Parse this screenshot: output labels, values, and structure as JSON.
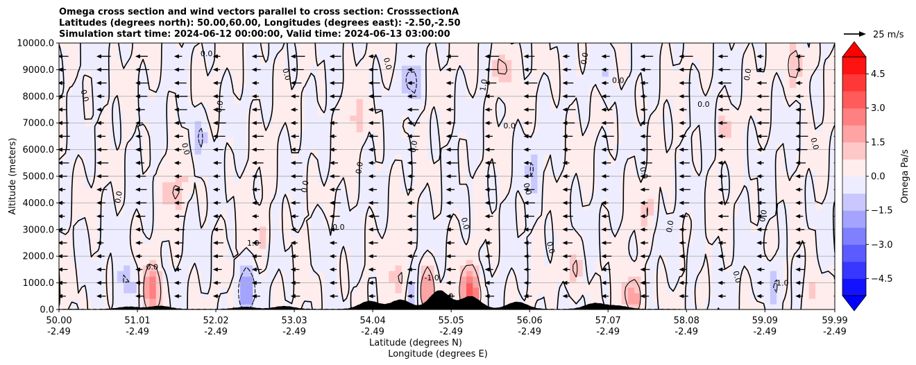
{
  "chart_data": {
    "type": "cross-section contour",
    "title_lines": [
      "Omega cross section and wind vectors parallel to cross section: CrosssectionA",
      "Latitudes (degrees north): 50.00,60.00, Longitudes (degrees east): -2.50,-2.50",
      "Simulation start time: 2024-06-12 00:00:00, Valid time: 2024-06-13 03:00:00"
    ],
    "ylabel": "Altitude (meters)",
    "xlabel_lat": "Latitude (degrees N)",
    "xlabel_lon": "Longitude (degrees E)",
    "ylim": [
      0,
      10000
    ],
    "y_ticks": [
      "0.0",
      "1000.0",
      "2000.0",
      "3000.0",
      "4000.0",
      "5000.0",
      "6000.0",
      "7000.0",
      "8000.0",
      "9000.0",
      "10000.0"
    ],
    "y_tick_values": [
      0,
      1000,
      2000,
      3000,
      4000,
      5000,
      6000,
      7000,
      8000,
      9000,
      10000
    ],
    "x_ticks_lat": [
      "50.00",
      "51.01",
      "52.02",
      "53.03",
      "54.04",
      "55.05",
      "56.06",
      "57.07",
      "58.08",
      "59.09",
      "59.99"
    ],
    "x_ticks_lon": [
      "-2.49",
      "-2.49",
      "-2.49",
      "-2.49",
      "-2.49",
      "-2.49",
      "-2.49",
      "-2.49",
      "-2.49",
      "-2.49",
      "-2.49"
    ],
    "x_tick_values": [
      50.0,
      51.01,
      52.02,
      53.03,
      54.04,
      55.05,
      56.06,
      57.07,
      58.08,
      59.09,
      59.99
    ],
    "xlim": [
      50.0,
      59.99
    ],
    "colorbar": {
      "label": "Omega Pa/s",
      "range": [
        -5.25,
        5.25
      ],
      "ticks": [
        "4.5",
        "3.0",
        "1.5",
        "0.0",
        "−1.5",
        "−3.0",
        "−4.5"
      ],
      "tick_values": [
        4.5,
        3.0,
        1.5,
        0.0,
        -1.5,
        -3.0,
        -4.5
      ],
      "levels": [
        -5.25,
        -4.5,
        -3.75,
        -3.0,
        -2.25,
        -1.5,
        -0.75,
        0.0,
        0.75,
        1.5,
        2.25,
        3.0,
        3.75,
        4.5,
        5.25
      ],
      "extend": "both",
      "cmap": "bwr"
    },
    "quiver_key": {
      "label": "25 m/s",
      "speed": 25
    },
    "contour_labels": [
      "0.0",
      "1.0",
      "-1.0"
    ],
    "vector_direction": "southward",
    "vector_rows_altitudes": [
      500,
      1000,
      1500,
      2000,
      2500,
      3000,
      3500,
      4000,
      4500,
      5000,
      5500,
      6000,
      6500,
      7000,
      7500,
      8000,
      8500,
      9000,
      9500
    ],
    "vector_columns_latitudes": [
      50.0,
      50.5,
      51.0,
      51.5,
      52.0,
      52.5,
      53.0,
      53.5,
      54.0,
      54.5,
      55.0,
      55.5,
      56.0,
      56.5,
      57.0,
      57.5,
      58.0,
      58.5,
      59.0,
      59.5,
      59.99
    ],
    "terrain_peaks": [
      {
        "lat": 50.9,
        "height_m": 90
      },
      {
        "lat": 51.3,
        "height_m": 120
      },
      {
        "lat": 52.4,
        "height_m": 80
      },
      {
        "lat": 52.9,
        "height_m": 110
      },
      {
        "lat": 54.0,
        "height_m": 300
      },
      {
        "lat": 54.4,
        "height_m": 350
      },
      {
        "lat": 54.9,
        "height_m": 700
      },
      {
        "lat": 55.3,
        "height_m": 480
      },
      {
        "lat": 55.9,
        "height_m": 270
      },
      {
        "lat": 56.9,
        "height_m": 220
      },
      {
        "lat": 57.2,
        "height_m": 120
      }
    ],
    "omega_anomalies": [
      {
        "lat": 50.3,
        "alt": 2500,
        "omega": -0.4
      },
      {
        "lat": 50.9,
        "alt": 900,
        "omega": -1.2
      },
      {
        "lat": 51.2,
        "alt": 700,
        "omega": 2.3
      },
      {
        "lat": 51.5,
        "alt": 4500,
        "omega": 1.2
      },
      {
        "lat": 51.8,
        "alt": 6500,
        "omega": -1.0
      },
      {
        "lat": 52.4,
        "alt": 700,
        "omega": -1.8
      },
      {
        "lat": 52.6,
        "alt": 2800,
        "omega": 0.8
      },
      {
        "lat": 53.4,
        "alt": 3000,
        "omega": -0.6
      },
      {
        "lat": 53.8,
        "alt": 7200,
        "omega": 0.9
      },
      {
        "lat": 54.4,
        "alt": 1200,
        "omega": 1.5
      },
      {
        "lat": 54.5,
        "alt": 8500,
        "omega": -1.1
      },
      {
        "lat": 54.6,
        "alt": 900,
        "omega": -2.0
      },
      {
        "lat": 54.7,
        "alt": 800,
        "omega": 3.0
      },
      {
        "lat": 55.3,
        "alt": 600,
        "omega": 3.4
      },
      {
        "lat": 55.7,
        "alt": 9000,
        "omega": 1.4
      },
      {
        "lat": 56.1,
        "alt": 5500,
        "omega": -0.8
      },
      {
        "lat": 56.6,
        "alt": 1500,
        "omega": 1.2
      },
      {
        "lat": 57.0,
        "alt": 8800,
        "omega": -0.9
      },
      {
        "lat": 57.4,
        "alt": 500,
        "omega": 1.8
      },
      {
        "lat": 57.6,
        "alt": 3800,
        "omega": 0.7
      },
      {
        "lat": 58.2,
        "alt": 2000,
        "omega": -0.7
      },
      {
        "lat": 58.6,
        "alt": 6800,
        "omega": 0.8
      },
      {
        "lat": 59.2,
        "alt": 1000,
        "omega": -1.3
      },
      {
        "lat": 59.5,
        "alt": 9200,
        "omega": 1.5
      },
      {
        "lat": 59.7,
        "alt": 600,
        "omega": 1.0
      }
    ]
  }
}
